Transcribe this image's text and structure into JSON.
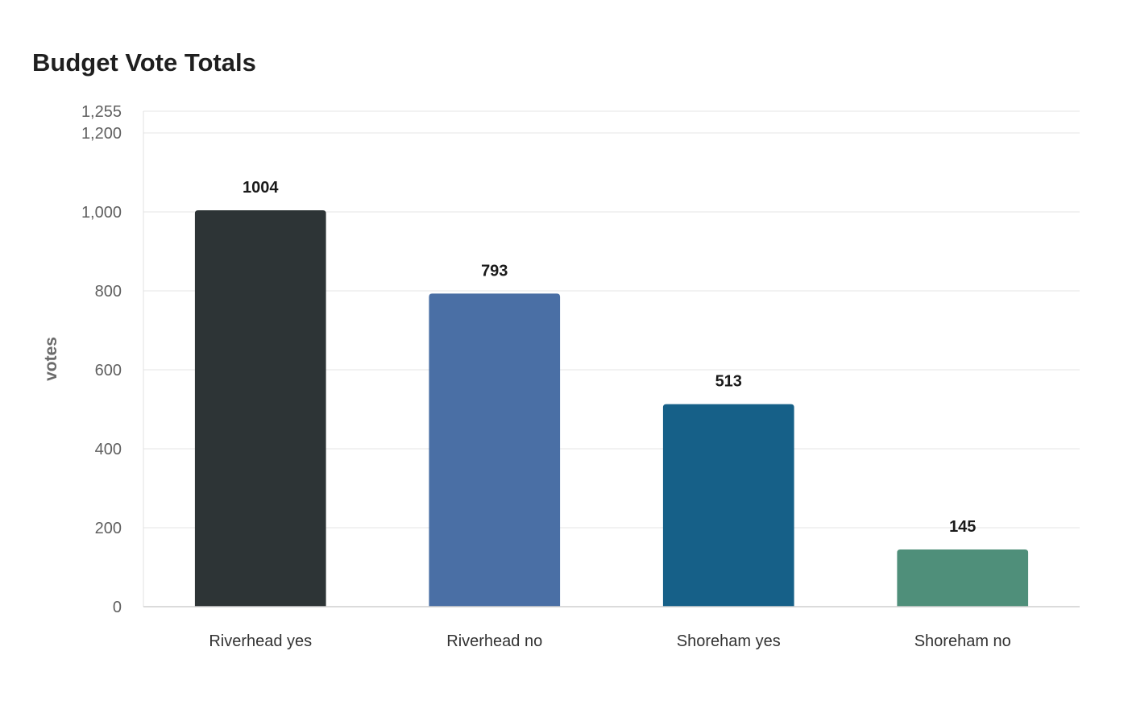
{
  "chart_data": {
    "type": "bar",
    "title": "Budget Vote Totals",
    "xlabel": "",
    "ylabel": "votes",
    "categories": [
      "Riverhead yes",
      "Riverhead no",
      "Shoreham yes",
      "Shoreham no"
    ],
    "values": [
      1004,
      793,
      513,
      145
    ],
    "value_labels": [
      "1004",
      "793",
      "513",
      "145"
    ],
    "bar_colors": [
      "#2d3436",
      "#4a6fa5",
      "#166088",
      "#4f8f7a"
    ],
    "ylim": [
      0,
      1255
    ],
    "yticks": [
      0,
      200,
      400,
      600,
      800,
      1000,
      1200,
      1255
    ],
    "ytick_labels": [
      "0",
      "200",
      "400",
      "600",
      "800",
      "1,000",
      "1,200",
      "1,255"
    ],
    "grid": true,
    "legend": "none"
  }
}
